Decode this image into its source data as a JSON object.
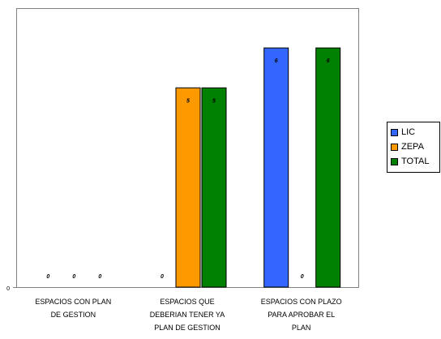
{
  "chart_data": {
    "type": "bar",
    "categories": [
      [
        "ESPACIOS CON PLAN",
        "DE GESTION"
      ],
      [
        "ESPACIOS QUE",
        "DEBERIAN TENER YA",
        "PLAN DE GESTION"
      ],
      [
        "ESPACIOS CON PLAZO",
        "PARA APROBAR EL",
        "PLAN"
      ]
    ],
    "series": [
      {
        "name": "LIC",
        "color": "#3366ff",
        "values": [
          0,
          0,
          6
        ]
      },
      {
        "name": "ZEPA",
        "color": "#ff9900",
        "values": [
          0,
          5,
          0
        ]
      },
      {
        "name": "TOTAL",
        "color": "#008000",
        "values": [
          0,
          5,
          6
        ]
      }
    ],
    "ylim": [
      0,
      7
    ],
    "yticks": [
      "0"
    ],
    "grid": false,
    "legend": "right"
  }
}
